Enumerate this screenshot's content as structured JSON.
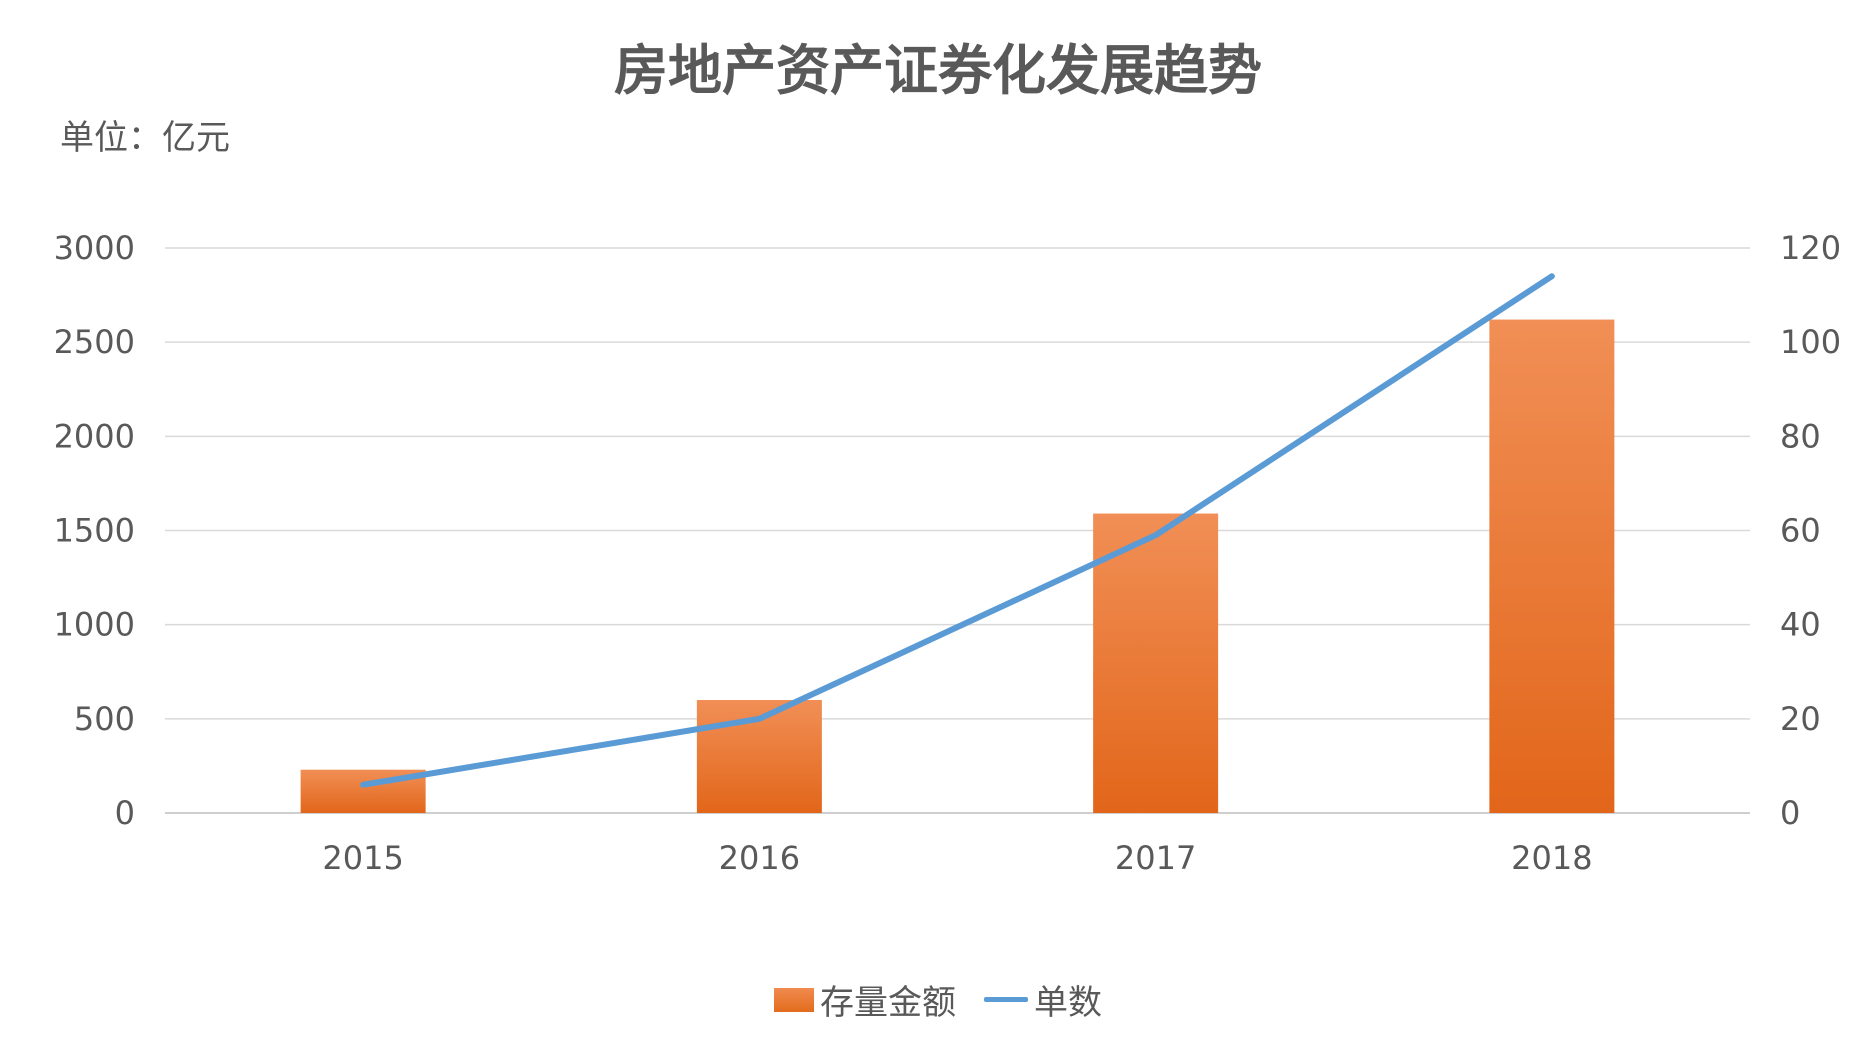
{
  "chart_data": {
    "type": "bar",
    "title": "房地产资产证券化发展趋势",
    "unit_label": "单位：亿元",
    "categories": [
      "2015",
      "2016",
      "2017",
      "2018"
    ],
    "series": [
      {
        "name": "存量金额",
        "type": "bar",
        "axis": "left",
        "values": [
          230,
          600,
          1590,
          2620
        ],
        "color": "#ed7d31"
      },
      {
        "name": "单数",
        "type": "line",
        "axis": "right",
        "values": [
          6,
          20,
          59,
          114
        ],
        "color": "#5b9bd5"
      }
    ],
    "y_left": {
      "min": 0,
      "max": 3000,
      "ticks": [
        "0",
        "500",
        "1000",
        "1500",
        "2000",
        "2500",
        "3000"
      ]
    },
    "y_right": {
      "min": 0,
      "max": 120,
      "ticks": [
        "0",
        "20",
        "40",
        "60",
        "80",
        "100",
        "120"
      ]
    },
    "grid": true,
    "legend_position": "bottom"
  }
}
